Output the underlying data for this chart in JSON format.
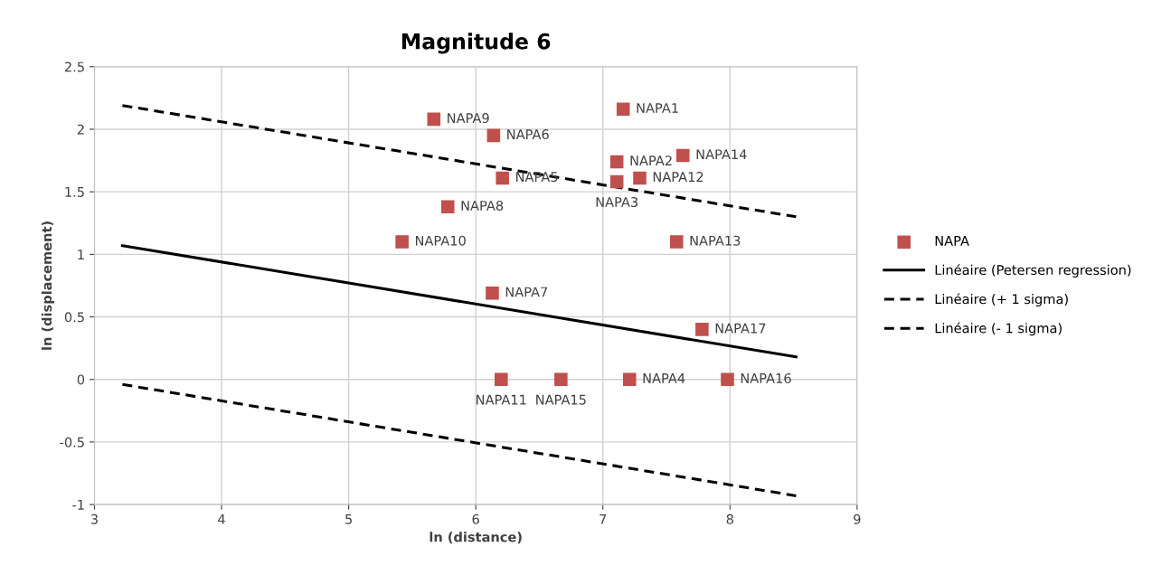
{
  "chart_data": {
    "type": "scatter",
    "title": "Magnitude 6",
    "xlabel": "ln (distance)",
    "ylabel": "ln (displacement)",
    "xlim": [
      3,
      9
    ],
    "xticks": [
      3,
      4,
      5,
      6,
      7,
      8,
      9
    ],
    "ylim": [
      -1,
      2.5
    ],
    "yticks": [
      -1,
      -0.5,
      0,
      0.5,
      1,
      1.5,
      2,
      2.5
    ],
    "grid": true,
    "legend": "right",
    "series": [
      {
        "name": "NAPA",
        "color": "#c0504d",
        "marker": "square",
        "x": [
          7.16,
          5.67,
          6.14,
          7.63,
          7.11,
          6.21,
          7.29,
          7.11,
          5.78,
          5.42,
          7.58,
          6.13,
          7.78,
          6.2,
          6.67,
          7.21,
          7.98
        ],
        "values": [
          2.16,
          2.08,
          1.95,
          1.79,
          1.74,
          1.61,
          1.61,
          1.58,
          1.38,
          1.1,
          1.1,
          0.69,
          0.4,
          0,
          0,
          0,
          0
        ],
        "value_labels": [
          "NAPA1",
          "NAPA9",
          "NAPA6",
          "NAPA14",
          "NAPA2",
          "NAPA5",
          "NAPA12",
          "NAPA3",
          "NAPA8",
          "NAPA10",
          "NAPA13",
          "NAPA7",
          "NAPA17",
          "NAPA11",
          "NAPA15",
          "NAPA4",
          "NAPA16"
        ]
      },
      {
        "name": "Linéaire (Petersen regression)",
        "type": "line",
        "color": "#000000",
        "line_style": "solid",
        "x": [
          3.22,
          8.52
        ],
        "values": [
          1.07,
          0.18
        ]
      },
      {
        "name": "Linéaire (+ 1 sigma)",
        "type": "line",
        "color": "#000000",
        "line_style": "dashed",
        "x": [
          3.22,
          8.52
        ],
        "values": [
          2.19,
          1.3
        ]
      },
      {
        "name": "Linéaire (- 1 sigma)",
        "type": "line",
        "color": "#000000",
        "line_style": "dashed",
        "x": [
          3.22,
          8.52
        ],
        "values": [
          -0.04,
          -0.93
        ]
      }
    ]
  }
}
